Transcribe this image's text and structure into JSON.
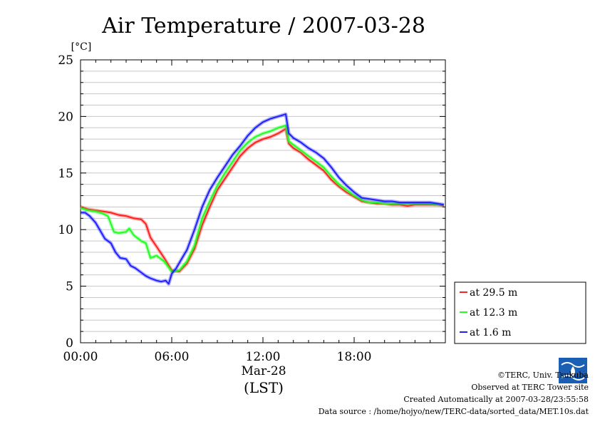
{
  "chart_data": {
    "type": "line",
    "title": "Air Temperature / 2007-03-28",
    "ylabel": "[°C]",
    "ylim": [
      0,
      25
    ],
    "xlim": [
      0,
      24
    ],
    "yticks": [
      0,
      5,
      10,
      15,
      20,
      25
    ],
    "xticks": [
      {
        "value": 0,
        "label": "00:00"
      },
      {
        "value": 6,
        "label": "06:00"
      },
      {
        "value": 12,
        "label": "12:00"
      },
      {
        "value": 18,
        "label": "18:00"
      }
    ],
    "date_label": "Mar-28",
    "time_zone_label": "(LST)",
    "grid": true,
    "legend_position": "right",
    "series": [
      {
        "name": "at 29.5 m",
        "color": "#ff2020",
        "x": [
          0,
          0.5,
          1,
          1.5,
          2,
          2.5,
          3,
          3.5,
          4,
          4.3,
          4.6,
          5,
          5.5,
          6,
          6.5,
          7,
          7.5,
          8,
          8.5,
          9,
          9.5,
          10,
          10.5,
          11,
          11.5,
          12,
          12.5,
          13,
          13.5,
          13.7,
          14,
          14.5,
          15,
          15.5,
          16,
          16.5,
          17,
          17.5,
          18,
          18.5,
          19,
          19.5,
          20,
          20.5,
          21,
          21.5,
          22,
          22.5,
          23,
          23.5,
          23.9
        ],
        "values": [
          12.0,
          11.8,
          11.7,
          11.6,
          11.5,
          11.3,
          11.2,
          11.0,
          10.9,
          10.5,
          9.3,
          8.5,
          7.5,
          6.4,
          6.3,
          7.0,
          8.3,
          10.4,
          12.0,
          13.5,
          14.5,
          15.5,
          16.5,
          17.2,
          17.7,
          18.0,
          18.2,
          18.5,
          18.9,
          17.6,
          17.2,
          16.8,
          16.2,
          15.7,
          15.2,
          14.4,
          13.8,
          13.3,
          12.9,
          12.5,
          12.4,
          12.3,
          12.3,
          12.2,
          12.2,
          12.1,
          12.2,
          12.2,
          12.2,
          12.2,
          12.1
        ]
      },
      {
        "name": "at 12.3 m",
        "color": "#20ff20",
        "x": [
          0,
          0.5,
          1,
          1.5,
          1.8,
          2.0,
          2.2,
          2.5,
          3,
          3.2,
          3.5,
          4,
          4.3,
          4.6,
          5,
          5.5,
          6,
          6.5,
          7,
          7.5,
          8,
          8.5,
          9,
          9.5,
          10,
          10.5,
          11,
          11.5,
          12,
          12.5,
          13,
          13.5,
          13.7,
          14,
          14.5,
          15,
          15.5,
          16,
          16.5,
          17,
          17.5,
          18,
          18.5,
          19,
          19.5,
          20,
          20.5,
          21,
          21.5,
          22,
          22.5,
          23,
          23.5,
          23.9
        ],
        "values": [
          11.9,
          11.7,
          11.6,
          11.4,
          11.2,
          10.5,
          9.8,
          9.7,
          9.8,
          10.1,
          9.5,
          9.0,
          8.8,
          7.5,
          7.7,
          7.2,
          6.3,
          6.4,
          7.2,
          8.6,
          11.0,
          12.5,
          13.9,
          15.0,
          16.0,
          17.0,
          17.7,
          18.2,
          18.5,
          18.7,
          19.0,
          19.2,
          17.8,
          17.5,
          17.0,
          16.5,
          16.0,
          15.5,
          14.7,
          14.0,
          13.5,
          13.0,
          12.6,
          12.4,
          12.4,
          12.3,
          12.3,
          12.3,
          12.3,
          12.3,
          12.3,
          12.3,
          12.2,
          12.2
        ]
      },
      {
        "name": "at 1.6 m",
        "color": "#2020ff",
        "x": [
          0,
          0.3,
          0.6,
          1,
          1.3,
          1.6,
          2,
          2.3,
          2.6,
          3,
          3.3,
          3.6,
          4,
          4.3,
          4.6,
          5,
          5.3,
          5.6,
          5.8,
          6,
          6.3,
          6.6,
          7,
          7.5,
          8,
          8.5,
          9,
          9.5,
          10,
          10.5,
          11,
          11.5,
          12,
          12.5,
          13,
          13.5,
          13.7,
          14,
          14.5,
          15,
          15.5,
          16,
          16.5,
          17,
          17.5,
          18,
          18.5,
          19,
          19.5,
          20,
          20.5,
          21,
          21.5,
          22,
          22.5,
          23,
          23.5,
          23.9
        ],
        "values": [
          11.5,
          11.5,
          11.2,
          10.6,
          9.9,
          9.2,
          8.8,
          8.0,
          7.5,
          7.4,
          6.8,
          6.6,
          6.2,
          5.9,
          5.7,
          5.5,
          5.4,
          5.5,
          5.2,
          6.1,
          6.6,
          7.3,
          8.2,
          10.0,
          12.0,
          13.5,
          14.6,
          15.6,
          16.6,
          17.4,
          18.3,
          19.0,
          19.5,
          19.8,
          20.0,
          20.2,
          18.5,
          18.1,
          17.7,
          17.2,
          16.8,
          16.3,
          15.5,
          14.6,
          13.9,
          13.3,
          12.8,
          12.7,
          12.6,
          12.5,
          12.5,
          12.4,
          12.4,
          12.4,
          12.4,
          12.4,
          12.3,
          12.2
        ]
      }
    ]
  },
  "credits": {
    "copyright": "©TERC, Univ. Tsukuba",
    "observed": "Observed at TERC Tower site",
    "created": "Created Automatically at 2007-03-28/23:55:58",
    "source": "Data source : /home/hojyo/new/TERC-data/sorted_data/MET.10s.dat",
    "logo_text": "TERC"
  }
}
